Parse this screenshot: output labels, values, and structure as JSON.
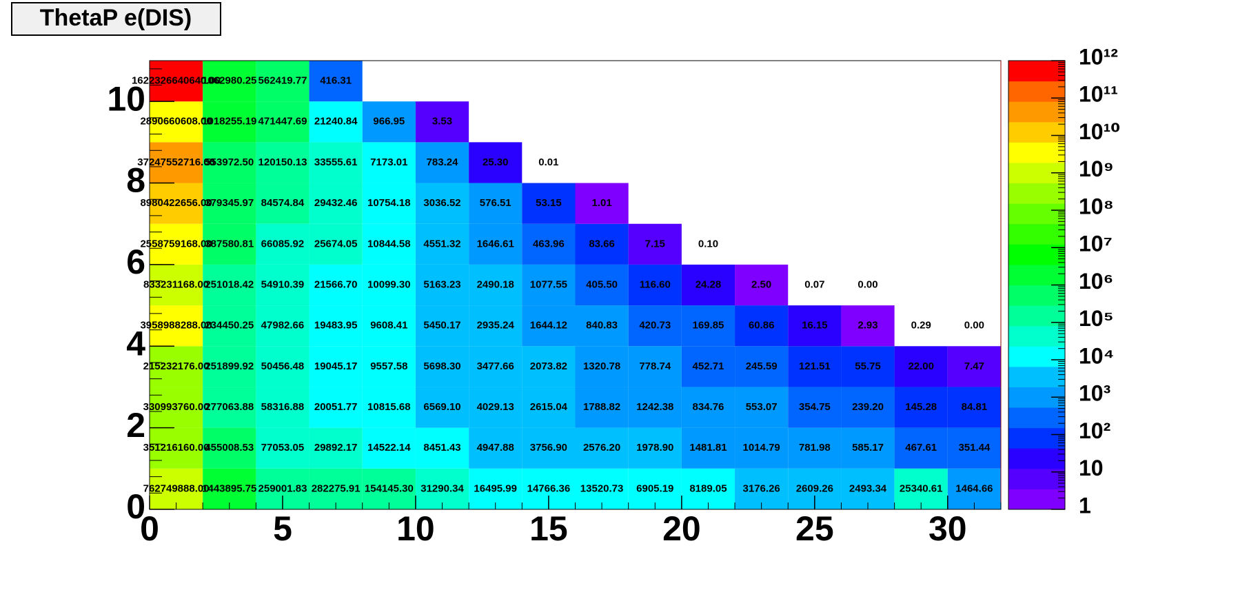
{
  "chart_data": {
    "type": "heatmap",
    "title": "ThetaP e(DIS)",
    "x_bins": [
      0,
      2,
      4,
      6,
      8,
      10,
      12,
      14,
      16,
      18,
      20,
      22,
      24,
      26,
      28,
      30,
      32
    ],
    "y_bins": [
      0,
      1,
      2,
      3,
      4,
      5,
      6,
      7,
      8,
      9,
      10,
      11
    ],
    "xlim": [
      0,
      32
    ],
    "xticks": [
      0,
      5,
      10,
      15,
      20,
      25,
      30
    ],
    "ylim": [
      0,
      11
    ],
    "yticks": [
      0,
      2,
      4,
      6,
      8,
      10
    ],
    "zlim": [
      1,
      1000000000000
    ],
    "log_z": true,
    "zticks": [
      1,
      10,
      {
        "value": 100,
        "label": "10²"
      },
      {
        "value": 1000,
        "label": "10³"
      },
      {
        "value": 10000,
        "label": "10⁴"
      },
      {
        "value": 100000,
        "label": "10⁵"
      },
      {
        "value": 1000000,
        "label": "10⁶"
      },
      {
        "value": 10000000,
        "label": "10⁷"
      },
      {
        "value": 100000000,
        "label": "10⁸"
      },
      {
        "value": 1000000000,
        "label": "10⁹"
      },
      {
        "value": 10000000000,
        "label": "10¹⁰"
      },
      {
        "value": 100000000000,
        "label": "10¹¹"
      },
      {
        "value": 1000000000000,
        "label": "10¹²"
      }
    ],
    "palette": [
      "#8000ff",
      "#5500ff",
      "#2a00ff",
      "#0033ff",
      "#0066ff",
      "#0099ff",
      "#00bfff",
      "#00ffff",
      "#00ffcc",
      "#00ff99",
      "#00ff66",
      "#00ff33",
      "#00ff00",
      "#33ff00",
      "#66ff00",
      "#99ff00",
      "#ccff00",
      "#ffff00",
      "#ffcc00",
      "#ff9900",
      "#ff6600",
      "#ff0000"
    ],
    "z": [
      [
        762749888.0,
        1443895.75,
        259001.83,
        282275.91,
        154145.3,
        31290.34,
        16495.99,
        14766.36,
        13520.73,
        6905.19,
        8189.05,
        3176.26,
        2609.26,
        2493.34,
        25340.61,
        1464.66
      ],
      [
        351216160.0,
        455008.53,
        77053.05,
        29892.17,
        14522.14,
        8451.43,
        4947.88,
        3756.9,
        2576.2,
        1978.9,
        1481.81,
        1014.79,
        781.98,
        585.17,
        467.61,
        351.44
      ],
      [
        330993760.0,
        277063.88,
        58316.88,
        20051.77,
        10815.68,
        6569.1,
        4029.13,
        2615.04,
        1788.82,
        1242.38,
        834.76,
        553.07,
        354.75,
        239.2,
        145.28,
        84.81
      ],
      [
        215232176.0,
        251899.92,
        50456.48,
        19045.17,
        9557.58,
        5698.3,
        3477.66,
        2073.82,
        1320.78,
        778.74,
        452.71,
        245.59,
        121.51,
        55.75,
        22.0,
        7.47
      ],
      [
        3958988288.0,
        234450.25,
        47982.66,
        19483.95,
        9608.41,
        5450.17,
        2935.24,
        1644.12,
        840.83,
        420.73,
        169.85,
        60.86,
        16.15,
        2.93,
        0.29,
        0.0
      ],
      [
        833231168.0,
        251018.42,
        54910.39,
        21566.7,
        10099.3,
        5163.23,
        2490.18,
        1077.55,
        405.5,
        116.6,
        24.28,
        2.5,
        0.07,
        0.0
      ],
      [
        2558759168.0,
        387580.81,
        66085.92,
        25674.05,
        10844.58,
        4551.32,
        1646.61,
        463.96,
        83.66,
        7.15,
        0.1
      ],
      [
        8980422656.0,
        379345.97,
        84574.84,
        29432.46,
        10754.18,
        3036.52,
        576.51,
        53.15,
        1.01
      ],
      [
        37247552716.0,
        553972.5,
        120150.13,
        33555.61,
        7173.01,
        783.24,
        25.3,
        0.01
      ],
      [
        2890660608.0,
        1018255.19,
        471447.69,
        21240.84,
        966.95,
        3.53
      ],
      [
        1622326640640.0,
        1062980.25,
        562419.77,
        416.31
      ]
    ],
    "value_labels": [
      [
        "762749888.00",
        "1443895.75",
        "259001.83",
        "282275.91",
        "154145.30",
        "31290.34",
        "16495.99",
        "14766.36",
        "13520.73",
        "6905.19",
        "8189.05",
        "3176.26",
        "2609.26",
        "2493.34",
        "25340.61",
        "1464.66"
      ],
      [
        "351216160.00",
        "455008.53",
        "77053.05",
        "29892.17",
        "14522.14",
        "8451.43",
        "4947.88",
        "3756.90",
        "2576.20",
        "1978.90",
        "1481.81",
        "1014.79",
        "781.98",
        "585.17",
        "467.61",
        "351.44"
      ],
      [
        "330993760.00",
        "277063.88",
        "58316.88",
        "20051.77",
        "10815.68",
        "6569.10",
        "4029.13",
        "2615.04",
        "1788.82",
        "1242.38",
        "834.76",
        "553.07",
        "354.75",
        "239.20",
        "145.28",
        "84.81"
      ],
      [
        "215232176.00",
        "251899.92",
        "50456.48",
        "19045.17",
        "9557.58",
        "5698.30",
        "3477.66",
        "2073.82",
        "1320.78",
        "778.74",
        "452.71",
        "245.59",
        "121.51",
        "55.75",
        "22.00",
        "7.47"
      ],
      [
        "3958988288.00",
        "234450.25",
        "47982.66",
        "19483.95",
        "9608.41",
        "5450.17",
        "2935.24",
        "1644.12",
        "840.83",
        "420.73",
        "169.85",
        "60.86",
        "16.15",
        "2.93",
        "0.29",
        "0.00"
      ],
      [
        "833231168.00",
        "251018.42",
        "54910.39",
        "21566.70",
        "10099.30",
        "5163.23",
        "2490.18",
        "1077.55",
        "405.50",
        "116.60",
        "24.28",
        "2.50",
        "0.07",
        "0.00"
      ],
      [
        "2558759168.00",
        "387580.81",
        "66085.92",
        "25674.05",
        "10844.58",
        "4551.32",
        "1646.61",
        "463.96",
        "83.66",
        "7.15",
        "0.10"
      ],
      [
        "8980422656.00",
        "379345.97",
        "84574.84",
        "29432.46",
        "10754.18",
        "3036.52",
        "576.51",
        "53.15",
        "1.01"
      ],
      [
        "37247552716.00",
        "553972.50",
        "120150.13",
        "33555.61",
        "7173.01",
        "783.24",
        "25.30",
        "0.01"
      ],
      [
        "2890660608.00",
        "1018255.19",
        "471447.69",
        "21240.84",
        "966.95",
        "3.53"
      ],
      [
        "1622326640640.00",
        "1062980.25",
        "562419.77",
        "416.31"
      ]
    ]
  }
}
